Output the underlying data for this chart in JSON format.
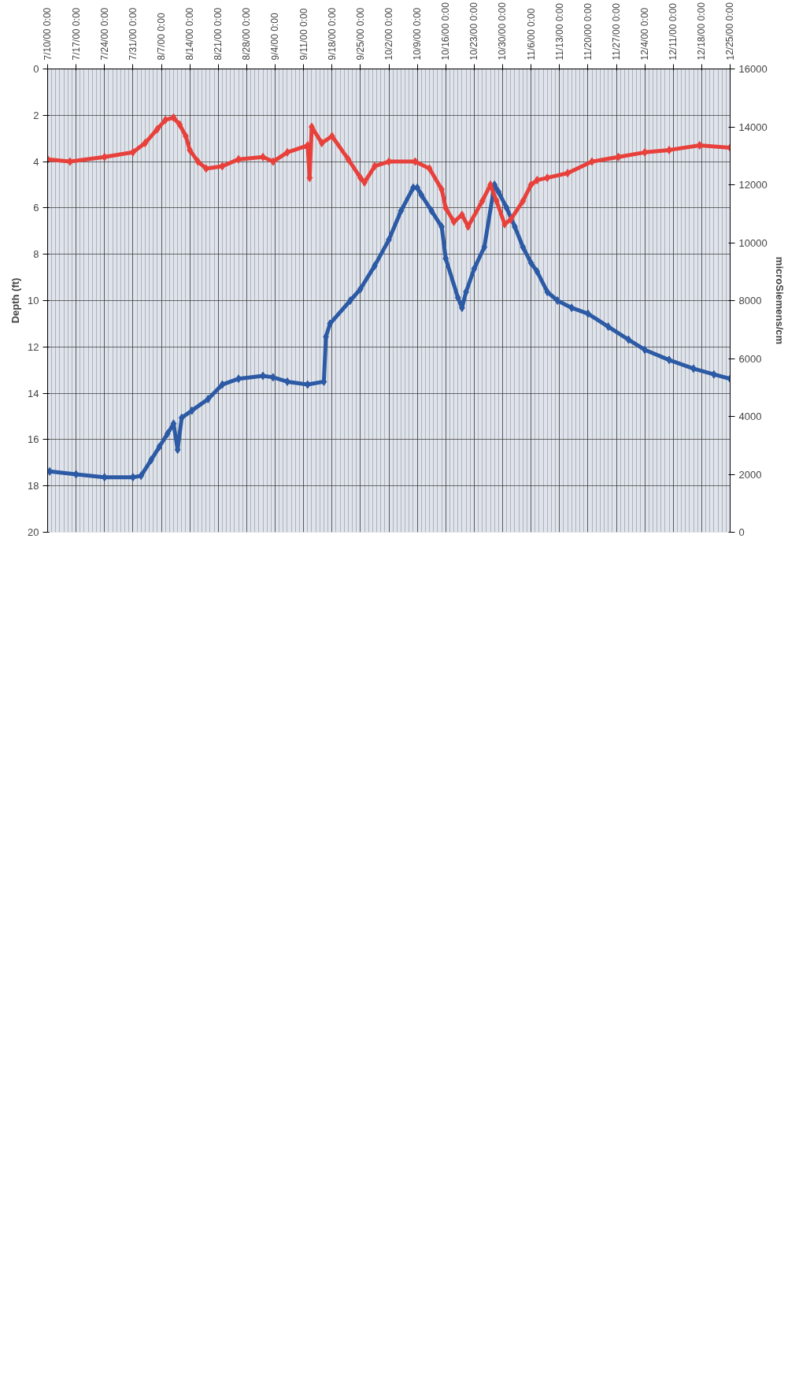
{
  "chart_data": {
    "type": "line",
    "xlabel": null,
    "ylabel": "Depth (ft)",
    "y2label": "microSiemens/cm",
    "xlim": [
      "2000-07-10",
      "2000-12-25"
    ],
    "xticks": [
      {
        "value": "2000-07-10",
        "label": "7/10/00 0:00"
      },
      {
        "value": "2000-07-17",
        "label": "7/17/00 0:00"
      },
      {
        "value": "2000-07-24",
        "label": "7/24/00 0:00"
      },
      {
        "value": "2000-07-31",
        "label": "7/31/00 0:00"
      },
      {
        "value": "2000-08-07",
        "label": "8/7/00 0:00"
      },
      {
        "value": "2000-08-14",
        "label": "8/14/00 0:00"
      },
      {
        "value": "2000-08-21",
        "label": "8/21/00 0:00"
      },
      {
        "value": "2000-08-28",
        "label": "8/28/00 0:00"
      },
      {
        "value": "2000-09-04",
        "label": "9/4/00 0:00"
      },
      {
        "value": "2000-09-11",
        "label": "9/11/00 0:00"
      },
      {
        "value": "2000-09-18",
        "label": "9/18/00 0:00"
      },
      {
        "value": "2000-09-25",
        "label": "9/25/00 0:00"
      },
      {
        "value": "2000-10-02",
        "label": "10/2/00 0:00"
      },
      {
        "value": "2000-10-09",
        "label": "10/9/00 0:00"
      },
      {
        "value": "2000-10-16",
        "label": "10/16/00 0:00"
      },
      {
        "value": "2000-10-23",
        "label": "10/23/00 0:00"
      },
      {
        "value": "2000-10-30",
        "label": "10/30/00 0:00"
      },
      {
        "value": "2000-11-06",
        "label": "11/6/00 0:00"
      },
      {
        "value": "2000-11-13",
        "label": "11/13/00 0:00"
      },
      {
        "value": "2000-11-20",
        "label": "11/20/00 0:00"
      },
      {
        "value": "2000-11-27",
        "label": "11/27/00 0:00"
      },
      {
        "value": "2000-12-04",
        "label": "12/4/00 0:00"
      },
      {
        "value": "2000-12-11",
        "label": "12/11/00 0:00"
      },
      {
        "value": "2000-12-18",
        "label": "12/18/00 0:00"
      },
      {
        "value": "2000-12-25",
        "label": "12/25/00 0:00"
      }
    ],
    "ylim": [
      20,
      0
    ],
    "yticks": [
      0,
      2,
      4,
      6,
      8,
      10,
      12,
      14,
      16,
      18,
      20
    ],
    "y2lim": [
      0,
      16000
    ],
    "y2ticks": [
      0,
      2000,
      4000,
      6000,
      8000,
      10000,
      12000,
      14000,
      16000
    ],
    "grid": true,
    "marker": "diamond",
    "line_style": "solid",
    "series": [
      {
        "color": "#e8413c",
        "x": [
          "2000-07-10",
          "2000-07-15T12:00",
          "2000-07-24",
          "2000-07-31",
          "2000-08-03",
          "2000-08-06",
          "2000-08-08",
          "2000-08-10",
          "2000-08-11T12:00",
          "2000-08-13",
          "2000-08-14",
          "2000-08-16",
          "2000-08-18",
          "2000-08-22",
          "2000-08-26",
          "2000-09-01",
          "2000-09-03T12:00",
          "2000-09-07",
          "2000-09-12",
          "2000-09-12T12:00",
          "2000-09-13",
          "2000-09-15T12:00",
          "2000-09-18",
          "2000-09-22",
          "2000-09-25",
          "2000-09-26",
          "2000-09-28T12:00",
          "2000-10-02",
          "2000-10-08T12:00",
          "2000-10-12",
          "2000-10-15",
          "2000-10-16",
          "2000-10-18",
          "2000-10-20",
          "2000-10-21T12:00",
          "2000-10-25",
          "2000-10-27",
          "2000-10-28T12:00",
          "2000-10-30T12:00",
          "2000-11-01",
          "2000-11-04",
          "2000-11-06",
          "2000-11-07T12:00",
          "2000-11-10",
          "2000-11-15",
          "2000-11-21",
          "2000-11-27T12:00",
          "2000-12-04",
          "2000-12-10",
          "2000-12-17T12:00",
          "2000-12-25"
        ],
        "values": [
          3.9,
          4.0,
          3.8,
          3.6,
          3.2,
          2.6,
          2.2,
          2.1,
          2.4,
          2.9,
          3.5,
          4.0,
          4.3,
          4.2,
          3.9,
          3.8,
          4.0,
          3.6,
          3.3,
          4.7,
          2.5,
          3.2,
          2.9,
          3.9,
          4.7,
          4.9,
          4.2,
          4.0,
          4.0,
          4.3,
          5.2,
          6.0,
          6.6,
          6.3,
          6.8,
          5.7,
          5.0,
          5.7,
          6.7,
          6.5,
          5.7,
          5.0,
          4.8,
          4.7,
          4.5,
          4.0,
          3.8,
          3.6,
          3.5,
          3.3,
          3.4
        ]
      },
      {
        "color": "#2c5aa5",
        "axis": "y2",
        "x": [
          "2000-07-10T12:00",
          "2000-07-17",
          "2000-07-24",
          "2000-07-31",
          "2000-08-02",
          "2000-08-04T12:00",
          "2000-08-06T12:00",
          "2000-08-08T12:00",
          "2000-08-10",
          "2000-08-11",
          "2000-08-12",
          "2000-08-14T12:00",
          "2000-08-18T12:00",
          "2000-08-22",
          "2000-08-26",
          "2000-09-01",
          "2000-09-03T12:00",
          "2000-09-07",
          "2000-09-12",
          "2000-09-16",
          "2000-09-16T12:00",
          "2000-09-17T12:00",
          "2000-09-22T12:00",
          "2000-09-25",
          "2000-09-28T12:00",
          "2000-10-02",
          "2000-10-05",
          "2000-10-08",
          "2000-10-09",
          "2000-10-10",
          "2000-10-12T12:00",
          "2000-10-15",
          "2000-10-16",
          "2000-10-19",
          "2000-10-20",
          "2000-10-21",
          "2000-10-23",
          "2000-10-25T12:00",
          "2000-10-28",
          "2000-10-29",
          "2000-10-31",
          "2000-11-02",
          "2000-11-04",
          "2000-11-06",
          "2000-11-07T12:00",
          "2000-11-10",
          "2000-11-12T12:00",
          "2000-11-16",
          "2000-11-20",
          "2000-11-25",
          "2000-11-30",
          "2000-12-04",
          "2000-12-10",
          "2000-12-16",
          "2000-12-21",
          "2000-12-25"
        ],
        "values": [
          2100,
          2000,
          1900,
          1900,
          1950,
          2500,
          2950,
          3400,
          3750,
          2850,
          3950,
          4200,
          4600,
          5100,
          5300,
          5400,
          5350,
          5200,
          5100,
          5200,
          6750,
          7200,
          8000,
          8400,
          9200,
          10100,
          11100,
          11900,
          11900,
          11650,
          11100,
          10550,
          9450,
          8100,
          7750,
          8300,
          9100,
          9850,
          12000,
          11750,
          11200,
          10550,
          9850,
          9300,
          9000,
          8300,
          8000,
          7750,
          7550,
          7100,
          6650,
          6300,
          5950,
          5650,
          5450,
          5300
        ]
      }
    ]
  }
}
